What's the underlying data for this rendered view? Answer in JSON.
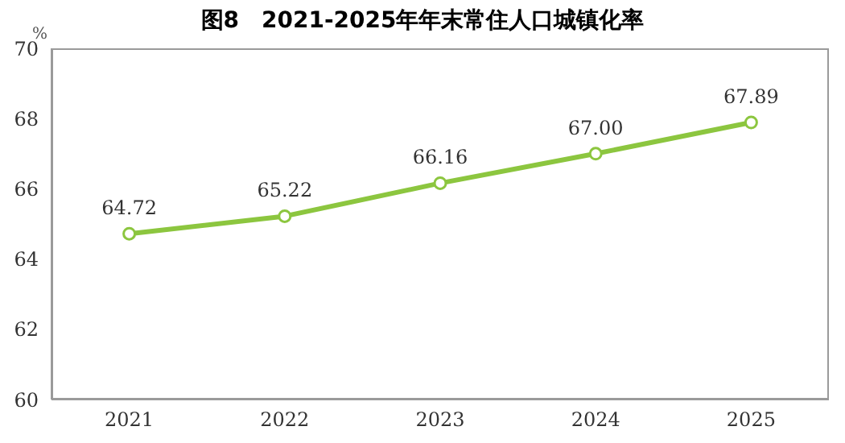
{
  "chart_data": {
    "type": "line",
    "title": "图8　2021-2025年年末常住人口城镇化率",
    "ylabel": "%",
    "categories": [
      "2021",
      "2022",
      "2023",
      "2024",
      "2025"
    ],
    "series": [
      {
        "color": "#8cc63f",
        "values": [
          64.72,
          65.22,
          66.16,
          67.0,
          67.89
        ],
        "value_labels": [
          "64.72",
          "65.22",
          "66.16",
          "67.00",
          "67.89"
        ]
      }
    ],
    "ylim": [
      60,
      70
    ],
    "yticks": [
      60,
      62,
      64,
      66,
      68,
      70
    ],
    "marker": "circle",
    "line_style": "solid"
  }
}
